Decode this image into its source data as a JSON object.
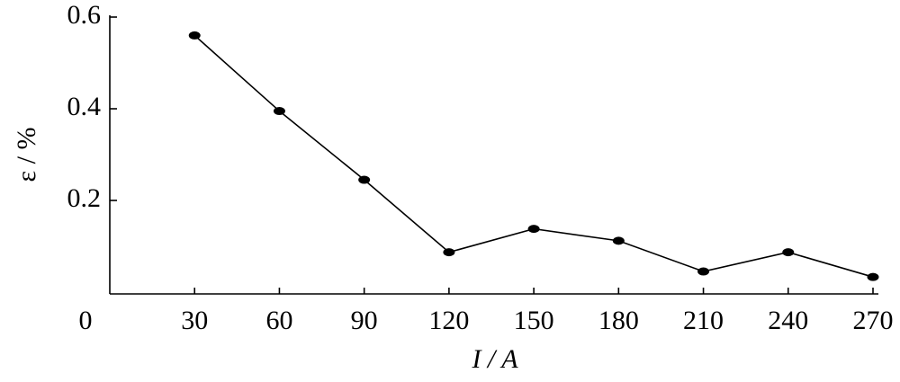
{
  "chart_data": {
    "type": "line",
    "x_label": "I / A",
    "y_label": "ε / %",
    "x": [
      30,
      60,
      90,
      120,
      150,
      180,
      210,
      240,
      270
    ],
    "series": [
      {
        "name": null,
        "color": "#000000",
        "values": [
          0.56,
          0.395,
          0.245,
          0.087,
          0.138,
          0.112,
          0.045,
          0.087,
          0.033
        ]
      }
    ],
    "xlim": [
      0,
      270
    ],
    "xticks": [
      0,
      30,
      60,
      90,
      120,
      150,
      180,
      210,
      240,
      270
    ],
    "ylim": [
      0,
      0.6
    ],
    "yticks": [
      0.2,
      0.4,
      0.6
    ],
    "grid": false,
    "markers": true
  }
}
